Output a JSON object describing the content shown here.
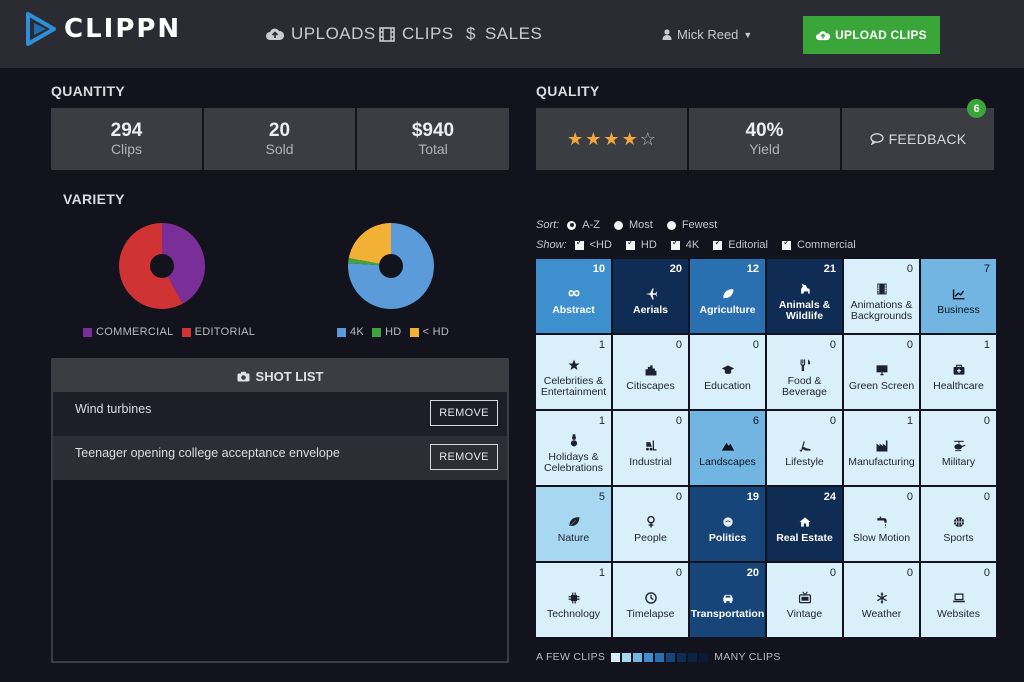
{
  "app": {
    "logo_text": "CLIPPN"
  },
  "nav": {
    "uploads": "UPLOADS",
    "clips": "CLIPS",
    "sales": "SALES"
  },
  "user": {
    "name": "Mick Reed"
  },
  "upload_button": "UPLOAD CLIPS",
  "quantity": {
    "title": "QUANTITY",
    "clips": {
      "value": "294",
      "label": "Clips"
    },
    "sold": {
      "value": "20",
      "label": "Sold"
    },
    "total": {
      "value": "$940",
      "label": "Total"
    }
  },
  "quality": {
    "title": "QUALITY",
    "rating": 4,
    "rating_max": 5,
    "yield": {
      "value": "40%",
      "label": "Yield"
    },
    "feedback": {
      "label": "FEEDBACK",
      "count": "6"
    }
  },
  "variety": {
    "title": "VARIETY",
    "license_chart": {
      "type": "pie",
      "series": [
        {
          "name": "COMMERCIAL",
          "value": 42,
          "color": "#7a2e98"
        },
        {
          "name": "EDITORIAL",
          "value": 58,
          "color": "#d03333"
        }
      ]
    },
    "resolution_chart": {
      "type": "pie",
      "series": [
        {
          "name": "4K",
          "value": 76,
          "color": "#5b9bd9"
        },
        {
          "name": "HD",
          "value": 2,
          "color": "#3fa33f"
        },
        {
          "name": "< HD",
          "value": 22,
          "color": "#f2b134"
        }
      ]
    }
  },
  "shot_list": {
    "title": "SHOT LIST",
    "items": [
      {
        "text": "Wind turbines",
        "button": "REMOVE"
      },
      {
        "text": "Teenager opening college acceptance envelope",
        "button": "REMOVE"
      }
    ]
  },
  "sort": {
    "label": "Sort:",
    "options": [
      "A-Z",
      "Most",
      "Fewest"
    ],
    "selected": "A-Z"
  },
  "show": {
    "label": "Show:",
    "options": [
      "<HD",
      "HD",
      "4K",
      "Editorial",
      "Commercial"
    ]
  },
  "categories": [
    {
      "name": "Abstract",
      "count": 10,
      "icon": "infinity-icon",
      "level": 3
    },
    {
      "name": "Aerials",
      "count": 20,
      "icon": "airplane-icon",
      "level": 6
    },
    {
      "name": "Agriculture",
      "count": 12,
      "icon": "leaf-icon",
      "level": 4
    },
    {
      "name": "Animals & Wildlife",
      "count": 21,
      "icon": "dog-icon",
      "level": 6
    },
    {
      "name": "Animations & Backgrounds",
      "count": 0,
      "icon": "film-icon",
      "level": 0
    },
    {
      "name": "Business",
      "count": 7,
      "icon": "chart-icon",
      "level": 2
    },
    {
      "name": "Celebrities & Entertainment",
      "count": 1,
      "icon": "star-icon",
      "level": 0
    },
    {
      "name": "Citiscapes",
      "count": 0,
      "icon": "city-icon",
      "level": 0
    },
    {
      "name": "Education",
      "count": 0,
      "icon": "graduation-cap-icon",
      "level": 0
    },
    {
      "name": "Food & Beverage",
      "count": 0,
      "icon": "utensils-icon",
      "level": 0
    },
    {
      "name": "Green Screen",
      "count": 0,
      "icon": "monitor-icon",
      "level": 0
    },
    {
      "name": "Healthcare",
      "count": 1,
      "icon": "medkit-icon",
      "level": 0
    },
    {
      "name": "Holidays & Celebrations",
      "count": 1,
      "icon": "snowman-icon",
      "level": 0
    },
    {
      "name": "Industrial",
      "count": 0,
      "icon": "forklift-icon",
      "level": 0
    },
    {
      "name": "Landscapes",
      "count": 6,
      "icon": "mountain-icon",
      "level": 2
    },
    {
      "name": "Lifestyle",
      "count": 0,
      "icon": "heel-icon",
      "level": 0
    },
    {
      "name": "Manufacturing",
      "count": 1,
      "icon": "factory-icon",
      "level": 0
    },
    {
      "name": "Military",
      "count": 0,
      "icon": "helicopter-icon",
      "level": 0
    },
    {
      "name": "Nature",
      "count": 5,
      "icon": "leaf-icon",
      "level": 1
    },
    {
      "name": "People",
      "count": 0,
      "icon": "female-icon",
      "level": 0
    },
    {
      "name": "Politics",
      "count": 19,
      "icon": "hand-icon",
      "level": 5
    },
    {
      "name": "Real Estate",
      "count": 24,
      "icon": "house-icon",
      "level": 6
    },
    {
      "name": "Slow Motion",
      "count": 0,
      "icon": "faucet-icon",
      "level": 0
    },
    {
      "name": "Sports",
      "count": 0,
      "icon": "basketball-icon",
      "level": 0
    },
    {
      "name": "Technology",
      "count": 1,
      "icon": "chip-icon",
      "level": 0
    },
    {
      "name": "Timelapse",
      "count": 0,
      "icon": "clock-icon",
      "level": 0
    },
    {
      "name": "Transportation",
      "count": 20,
      "icon": "car-icon",
      "level": 5
    },
    {
      "name": "Vintage",
      "count": 0,
      "icon": "tv-icon",
      "level": 0
    },
    {
      "name": "Weather",
      "count": 0,
      "icon": "snowflake-icon",
      "level": 0
    },
    {
      "name": "Websites",
      "count": 0,
      "icon": "laptop-icon",
      "level": 0
    }
  ],
  "scale": {
    "low_label": "A FEW CLIPS",
    "high_label": "MANY CLIPS",
    "colors": [
      "#d9f0fb",
      "#a8d7f2",
      "#72b5e3",
      "#3e8fcd",
      "#2a6fb0",
      "#17457a",
      "#0f2c55",
      "#0a2244",
      "#081a36"
    ]
  }
}
